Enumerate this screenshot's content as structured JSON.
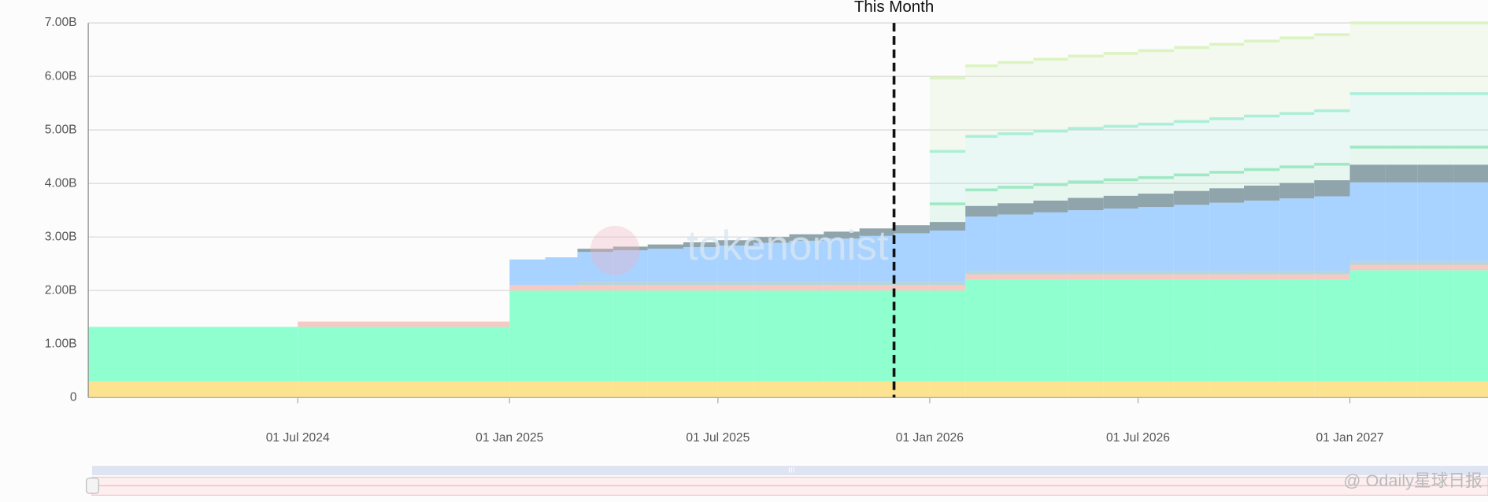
{
  "chart_data": {
    "type": "stacked-step-area",
    "x": [
      "2024-01-01",
      "2024-07-01",
      "2025-01-01",
      "2025-02-01",
      "2025-03-01",
      "2025-04-01",
      "2025-05-01",
      "2025-06-01",
      "2025-07-01",
      "2025-08-01",
      "2025-09-01",
      "2025-10-01",
      "2025-11-01",
      "2025-12-01",
      "2026-01-01",
      "2026-02-01",
      "2026-03-01",
      "2026-04-01",
      "2026-05-01",
      "2026-06-01",
      "2026-07-01",
      "2026-08-01",
      "2026-09-01",
      "2026-10-01",
      "2026-11-01",
      "2026-12-01",
      "2027-01-01",
      "2027-02-01",
      "2027-03-01",
      "2027-04-01"
    ],
    "series": [
      {
        "color": "#fde28f",
        "values": [
          0.3,
          0.3,
          0.3,
          0.3,
          0.3,
          0.3,
          0.3,
          0.3,
          0.3,
          0.3,
          0.3,
          0.3,
          0.3,
          0.3,
          0.3,
          0.3,
          0.3,
          0.3,
          0.3,
          0.3,
          0.3,
          0.3,
          0.3,
          0.3,
          0.3,
          0.3,
          0.3,
          0.3,
          0.3,
          0.3
        ]
      },
      {
        "color": "#8fffd0",
        "values": [
          1.02,
          1.02,
          1.7,
          1.7,
          1.7,
          1.7,
          1.7,
          1.7,
          1.7,
          1.7,
          1.7,
          1.7,
          1.7,
          1.7,
          1.7,
          1.9,
          1.9,
          1.9,
          1.9,
          1.9,
          1.9,
          1.9,
          1.9,
          1.9,
          1.9,
          1.9,
          2.08,
          2.08,
          2.08,
          2.08
        ]
      },
      {
        "color": "#f6c9c3",
        "values": [
          null,
          0.1,
          0.1,
          0.1,
          0.1,
          0.1,
          0.1,
          0.1,
          0.1,
          0.1,
          0.1,
          0.1,
          0.1,
          0.1,
          0.1,
          0.1,
          0.1,
          0.1,
          0.1,
          0.1,
          0.1,
          0.1,
          0.1,
          0.1,
          0.1,
          0.1,
          0.1,
          0.1,
          0.1,
          0.1
        ]
      },
      {
        "color": "#b8d4dc",
        "values": [
          null,
          null,
          null,
          null,
          0.07,
          0.07,
          0.07,
          0.07,
          0.07,
          0.07,
          0.07,
          0.07,
          0.07,
          0.07,
          0.07,
          0.07,
          0.07,
          0.07,
          0.07,
          0.07,
          0.07,
          0.07,
          0.07,
          0.07,
          0.07,
          0.07,
          0.07,
          0.07,
          0.07,
          0.07
        ]
      },
      {
        "color": "#a8d2ff",
        "values": [
          null,
          null,
          0.48,
          0.52,
          0.55,
          0.58,
          0.61,
          0.64,
          0.67,
          0.72,
          0.76,
          0.8,
          0.85,
          0.9,
          0.95,
          1.01,
          1.05,
          1.09,
          1.13,
          1.16,
          1.19,
          1.23,
          1.27,
          1.31,
          1.35,
          1.39,
          1.47,
          1.47,
          1.47,
          1.47
        ]
      },
      {
        "color": "#8fa4ab",
        "values": [
          null,
          null,
          null,
          null,
          0.06,
          0.07,
          0.08,
          0.09,
          0.1,
          0.11,
          0.12,
          0.13,
          0.14,
          0.15,
          0.16,
          0.2,
          0.21,
          0.22,
          0.23,
          0.24,
          0.25,
          0.26,
          0.27,
          0.28,
          0.29,
          0.3,
          0.33,
          0.33,
          0.33,
          0.33
        ]
      },
      {
        "color": "#9fe8c2",
        "projected": true,
        "values": [
          null,
          null,
          null,
          null,
          null,
          null,
          null,
          null,
          null,
          null,
          null,
          null,
          null,
          null,
          0.34,
          0.3,
          0.3,
          0.3,
          0.3,
          0.3,
          0.3,
          0.3,
          0.3,
          0.3,
          0.3,
          0.3,
          0.33,
          0.33,
          0.33,
          0.33
        ]
      },
      {
        "color": "#a8eedb",
        "projected": true,
        "values": [
          null,
          null,
          null,
          null,
          null,
          null,
          null,
          null,
          null,
          null,
          null,
          null,
          null,
          null,
          0.98,
          1.0,
          1.0,
          1.0,
          1.0,
          1.0,
          1.0,
          1.0,
          1.0,
          1.0,
          1.0,
          1.0,
          1.0,
          1.0,
          1.0,
          1.0
        ]
      },
      {
        "color": "#dcf3c2",
        "projected": true,
        "values": [
          null,
          null,
          null,
          null,
          null,
          null,
          null,
          null,
          null,
          null,
          null,
          null,
          null,
          null,
          1.37,
          1.32,
          1.33,
          1.34,
          1.35,
          1.36,
          1.37,
          1.38,
          1.39,
          1.4,
          1.41,
          1.42,
          1.32,
          1.32,
          1.32,
          1.32
        ]
      }
    ],
    "xlim": [
      "2024-01-01",
      "2027-05-01"
    ],
    "xticks": [
      {
        "value": "2024-07-01",
        "label": "01 Jul 2024"
      },
      {
        "value": "2025-01-01",
        "label": "01 Jan 2025"
      },
      {
        "value": "2025-07-01",
        "label": "01 Jul 2025"
      },
      {
        "value": "2026-01-01",
        "label": "01 Jan 2026"
      },
      {
        "value": "2026-07-01",
        "label": "01 Jul 2026"
      },
      {
        "value": "2027-01-01",
        "label": "01 Jan 2027"
      }
    ],
    "ylim": [
      0,
      7
    ],
    "yticks": [
      0,
      {
        "value": 1,
        "label": "1.00B"
      },
      {
        "value": 2,
        "label": "2.00B"
      },
      {
        "value": 3,
        "label": "3.00B"
      },
      {
        "value": 4,
        "label": "4.00B"
      },
      {
        "value": 5,
        "label": "5.00B"
      },
      {
        "value": 6,
        "label": "6.00B"
      },
      {
        "value": 7,
        "label": "7.00B"
      }
    ],
    "grid": true,
    "marker": {
      "x": "2025-12-01",
      "label": "This Month"
    },
    "watermark": "tokenomist",
    "source_watermark": "@ Odaily星球日报"
  }
}
